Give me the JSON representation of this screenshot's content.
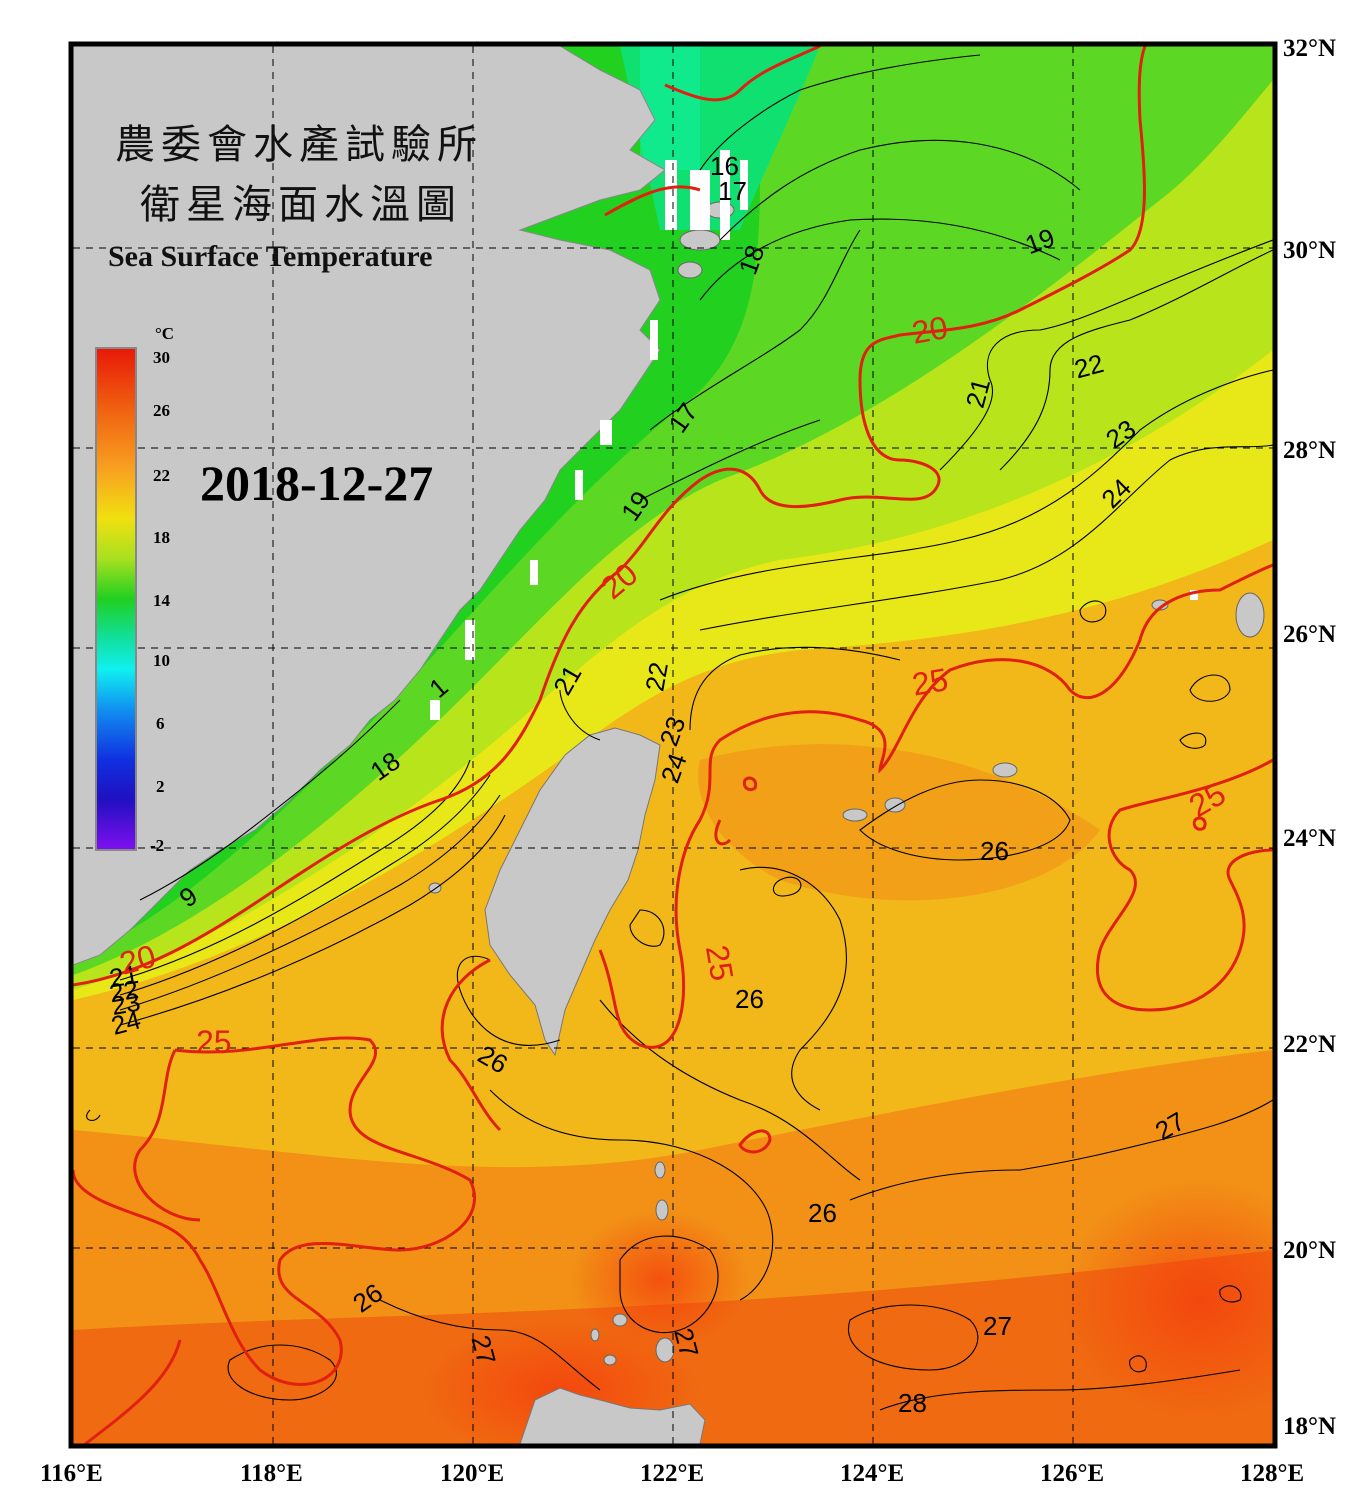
{
  "title": {
    "line1": "農委會水產試驗所",
    "line2": "衛星海面水溫圖",
    "english": "Sea Surface Temperature"
  },
  "date": "2018-12-27",
  "colorbar": {
    "unit": "°C",
    "ticks": [
      "30",
      "26",
      "22",
      "18",
      "14",
      "10",
      "6",
      "2",
      "-2"
    ],
    "colors": [
      "#e81808",
      "#f06010",
      "#f8a020",
      "#f0e010",
      "#a8e020",
      "#20d020",
      "#10e0a0",
      "#10f0f0",
      "#1090f0",
      "#1030e0",
      "#2010c0",
      "#8010f0"
    ]
  },
  "axes": {
    "longitudes": [
      "116°E",
      "118°E",
      "120°E",
      "122°E",
      "124°E",
      "126°E",
      "128°E"
    ],
    "latitudes": [
      "32°N",
      "30°N",
      "28°N",
      "26°N",
      "24°N",
      "22°N",
      "20°N",
      "18°N"
    ]
  },
  "contour_labels": {
    "black": [
      "16",
      "17",
      "18",
      "19",
      "21",
      "22",
      "23",
      "24",
      "17",
      "19",
      "21",
      "22",
      "23",
      "24",
      "18",
      "1",
      "9",
      "21",
      "22",
      "23",
      "24",
      "26",
      "26",
      "26",
      "26",
      "26",
      "27",
      "27",
      "27",
      "27",
      "28"
    ],
    "red": [
      "20",
      "20",
      "20",
      "25",
      "25",
      "25",
      "25"
    ]
  },
  "colors": {
    "land": "#c8c8c8",
    "frame": "#000000",
    "isotherm_major": "#e02010",
    "isotherm_minor": "#000000"
  }
}
